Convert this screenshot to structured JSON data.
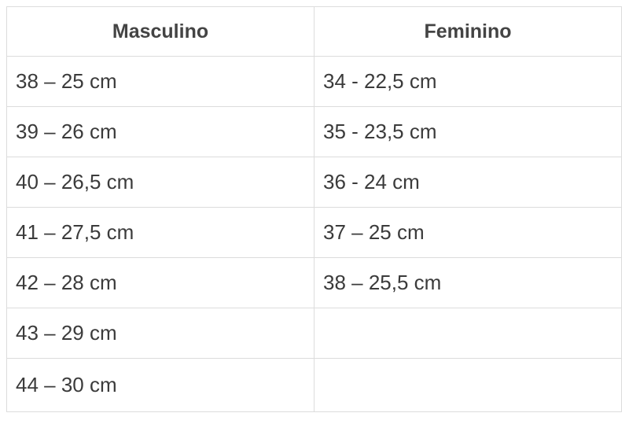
{
  "headers": [
    "Masculino",
    "Feminino"
  ],
  "rows": [
    [
      "38 – 25 cm",
      "34 - 22,5 cm"
    ],
    [
      "39 – 26 cm",
      "35 - 23,5 cm"
    ],
    [
      "40 – 26,5 cm",
      "36 - 24 cm"
    ],
    [
      "41 – 27,5 cm",
      "37 – 25 cm"
    ],
    [
      "42 – 28 cm",
      "38 – 25,5 cm"
    ],
    [
      "43 – 29 cm",
      ""
    ],
    [
      "44 – 30 cm",
      ""
    ]
  ]
}
